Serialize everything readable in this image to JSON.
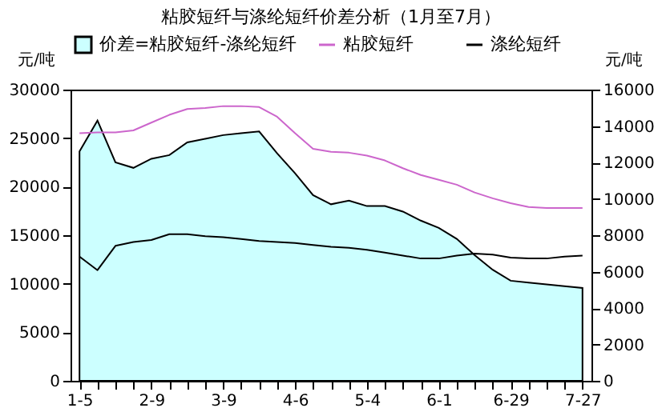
{
  "chart_data": {
    "type": "line",
    "title": "粘胶短纤与涤纶短纤价差分析（1月至7月）",
    "ylabel": "元/吨",
    "y2label": "元/吨",
    "categories": [
      "1-5",
      null,
      null,
      null,
      "2-9",
      null,
      null,
      null,
      "3-9",
      null,
      null,
      null,
      "4-6",
      null,
      null,
      null,
      "5-4",
      null,
      null,
      null,
      "6-1",
      null,
      null,
      null,
      "6-29",
      null,
      null,
      null,
      "7-27"
    ],
    "series": [
      {
        "name": "价差=粘胶短纤-涤纶短纤",
        "type": "area",
        "axis": "y2",
        "color": "#ccffff",
        "values": [
          12600,
          14300,
          12000,
          11700,
          12200,
          12400,
          13100,
          13300,
          13500,
          13600,
          13700,
          12500,
          11400,
          10200,
          9700,
          9900,
          9600,
          9600,
          9300,
          8800,
          8400,
          7800,
          6900,
          6100,
          5500,
          5400,
          5300,
          5200,
          5100
        ]
      },
      {
        "name": "粘胶短纤",
        "color": "#cc66cc",
        "values": [
          25500,
          25600,
          25600,
          25800,
          26600,
          27400,
          28000,
          28100,
          28300,
          28300,
          28200,
          27200,
          25500,
          23900,
          23600,
          23500,
          23200,
          22700,
          21900,
          21200,
          20700,
          20200,
          19400,
          18800,
          18300,
          17900,
          17800,
          17800,
          17800
        ]
      },
      {
        "name": "涤纶短纤",
        "color": "#000000",
        "values": [
          12800,
          11400,
          13900,
          14300,
          14500,
          15100,
          15100,
          14900,
          14800,
          14600,
          14400,
          14300,
          14200,
          14000,
          13800,
          13700,
          13500,
          13200,
          12900,
          12600,
          12600,
          12900,
          13100,
          13000,
          12700,
          12600,
          12600,
          12800,
          12900
        ]
      }
    ],
    "ylim": [
      0,
      30000
    ],
    "yticks": [
      0,
      5000,
      10000,
      15000,
      20000,
      25000,
      30000
    ],
    "y2lim": [
      0,
      16000
    ],
    "y2ticks": [
      0,
      2000,
      4000,
      6000,
      8000,
      10000,
      12000,
      14000,
      16000
    ],
    "legend": "top",
    "grid": false,
    "marker": "none",
    "line_style": "solid"
  }
}
